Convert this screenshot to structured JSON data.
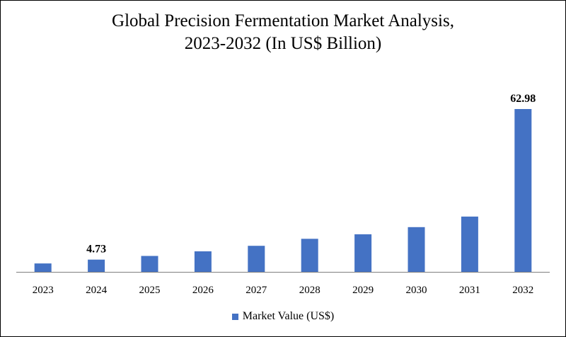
{
  "chart_data": {
    "type": "bar",
    "title_line1": "Global Precision Fermentation Market Analysis,",
    "title_line2": "2023-2032 (In US$ Billion)",
    "categories": [
      "2023",
      "2024",
      "2025",
      "2026",
      "2027",
      "2028",
      "2029",
      "2030",
      "2031",
      "2032"
    ],
    "series": [
      {
        "name": "Market Value (US$)",
        "values": [
          3.27,
          4.73,
          6.17,
          7.95,
          10.08,
          12.79,
          14.55,
          17.31,
          21.38,
          62.98
        ],
        "data_labels": {
          "1": "4.73",
          "9": "62.98"
        }
      }
    ],
    "bar_color": "#4472C4",
    "axis_color": "#7f7f7f",
    "grid": false,
    "legend_position": "bottom"
  }
}
